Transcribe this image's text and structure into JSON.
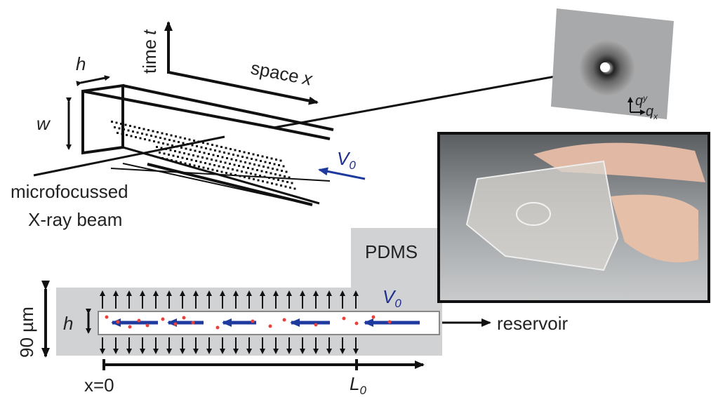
{
  "labels": {
    "time": {
      "word": "time",
      "symbol": "t"
    },
    "space": {
      "word": "space",
      "symbol": "x"
    },
    "h_top": "h",
    "w": "w",
    "v0_top": {
      "main": "V",
      "sub": "0"
    },
    "beam": [
      "microfocussed",
      "X-ray beam"
    ],
    "qy": {
      "main": "q",
      "sub": "y"
    },
    "qx": {
      "main": "q",
      "sub": "x"
    },
    "pdms": "PDMS",
    "v0_bottom": {
      "main": "V",
      "sub": "0"
    },
    "thickness": "90 µm",
    "h_bottom": "h",
    "reservoir": "reservoir",
    "origin": "x=0",
    "length": {
      "main": "L",
      "sub": "0"
    }
  }
}
